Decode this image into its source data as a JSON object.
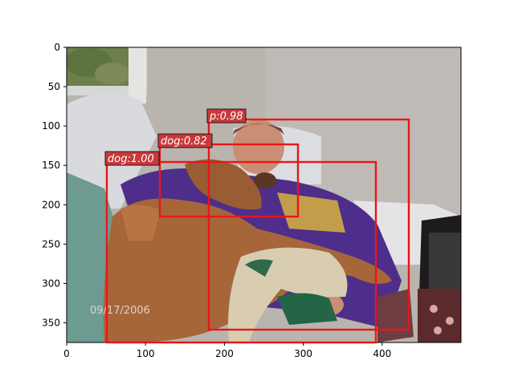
{
  "image": {
    "axes": {
      "x_ticks": [
        "0",
        "100",
        "200",
        "300",
        "400"
      ],
      "y_ticks": [
        "0",
        "50",
        "100",
        "150",
        "200",
        "250",
        "300",
        "350"
      ]
    },
    "date_stamp": "09/17/2006",
    "detections": [
      {
        "label": "p:0.98",
        "class": "p",
        "score": 0.98
      },
      {
        "label": "dog:0.82",
        "class": "dog",
        "score": 0.82
      },
      {
        "label": "dog:1.00",
        "class": "dog",
        "score": 1.0
      }
    ]
  },
  "colors": {
    "box_stroke": "#e8161a",
    "label_bg": "#c9393b",
    "wall": "#b8b3ae",
    "window": "#d7d9d2",
    "sofa": "#d3d4d6",
    "sweater": "#4f2f8a",
    "dog": "#a4663b",
    "blanket": "#d9cdb0"
  }
}
